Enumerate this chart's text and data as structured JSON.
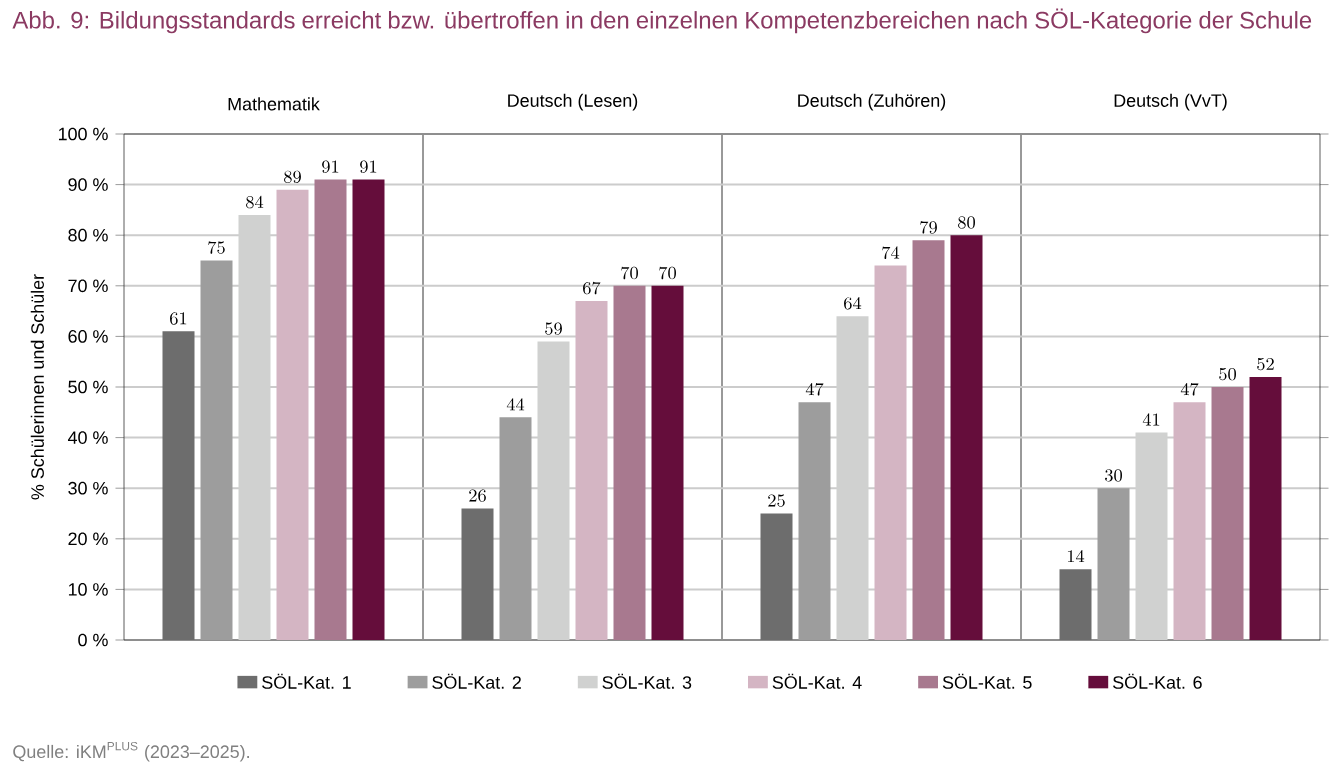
{
  "chart_data": {
    "type": "bar",
    "title": "Abb. 9: Bildungsstandards erreicht bzw. übertroffen in den einzelnen Kompetenzbereichen nach SÖL-Kategorie der Schule",
    "ylabel": "% Schülerinnen und Schüler",
    "annotations": [
      "Quelle: iKM$^{PLUS}$ (2023–2025)."
    ],
    "categories": [
      "Mathematik",
      "Deutsch (Lesen)",
      "Deutsch (Zuhören)",
      "Deutsch (VvT)"
    ],
    "series": [
      {
        "name": "SÖL-Kat. 1",
        "color": "#6d6d6d",
        "values": [
          61,
          26,
          25,
          14
        ]
      },
      {
        "name": "SÖL-Kat. 2",
        "color": "#9d9d9d",
        "values": [
          75,
          44,
          47,
          30
        ]
      },
      {
        "name": "SÖL-Kat. 3",
        "color": "#d0d1d0",
        "values": [
          84,
          59,
          64,
          41
        ]
      },
      {
        "name": "SÖL-Kat. 4",
        "color": "#d4b5c3",
        "values": [
          89,
          67,
          74,
          47
        ]
      },
      {
        "name": "SÖL-Kat. 5",
        "color": "#a8798f",
        "values": [
          91,
          70,
          79,
          50
        ]
      },
      {
        "name": "SÖL-Kat. 6",
        "color": "#650d3b",
        "values": [
          91,
          70,
          80,
          52
        ]
      }
    ],
    "ylim": [
      0,
      100
    ],
    "yticks": [
      {
        "value": 0,
        "label": "0 %"
      },
      {
        "value": 10,
        "label": "10 %"
      },
      {
        "value": 20,
        "label": "20 %"
      },
      {
        "value": 30,
        "label": "30 %"
      },
      {
        "value": 40,
        "label": "40 %"
      },
      {
        "value": 50,
        "label": "50 %"
      },
      {
        "value": 60,
        "label": "60 %"
      },
      {
        "value": 70,
        "label": "70 %"
      },
      {
        "value": 80,
        "label": "80 %"
      },
      {
        "value": 90,
        "label": "90 %"
      },
      {
        "value": 100,
        "label": "100 %"
      }
    ],
    "grid": "y",
    "legend": "bottom",
    "data_labels": true
  }
}
